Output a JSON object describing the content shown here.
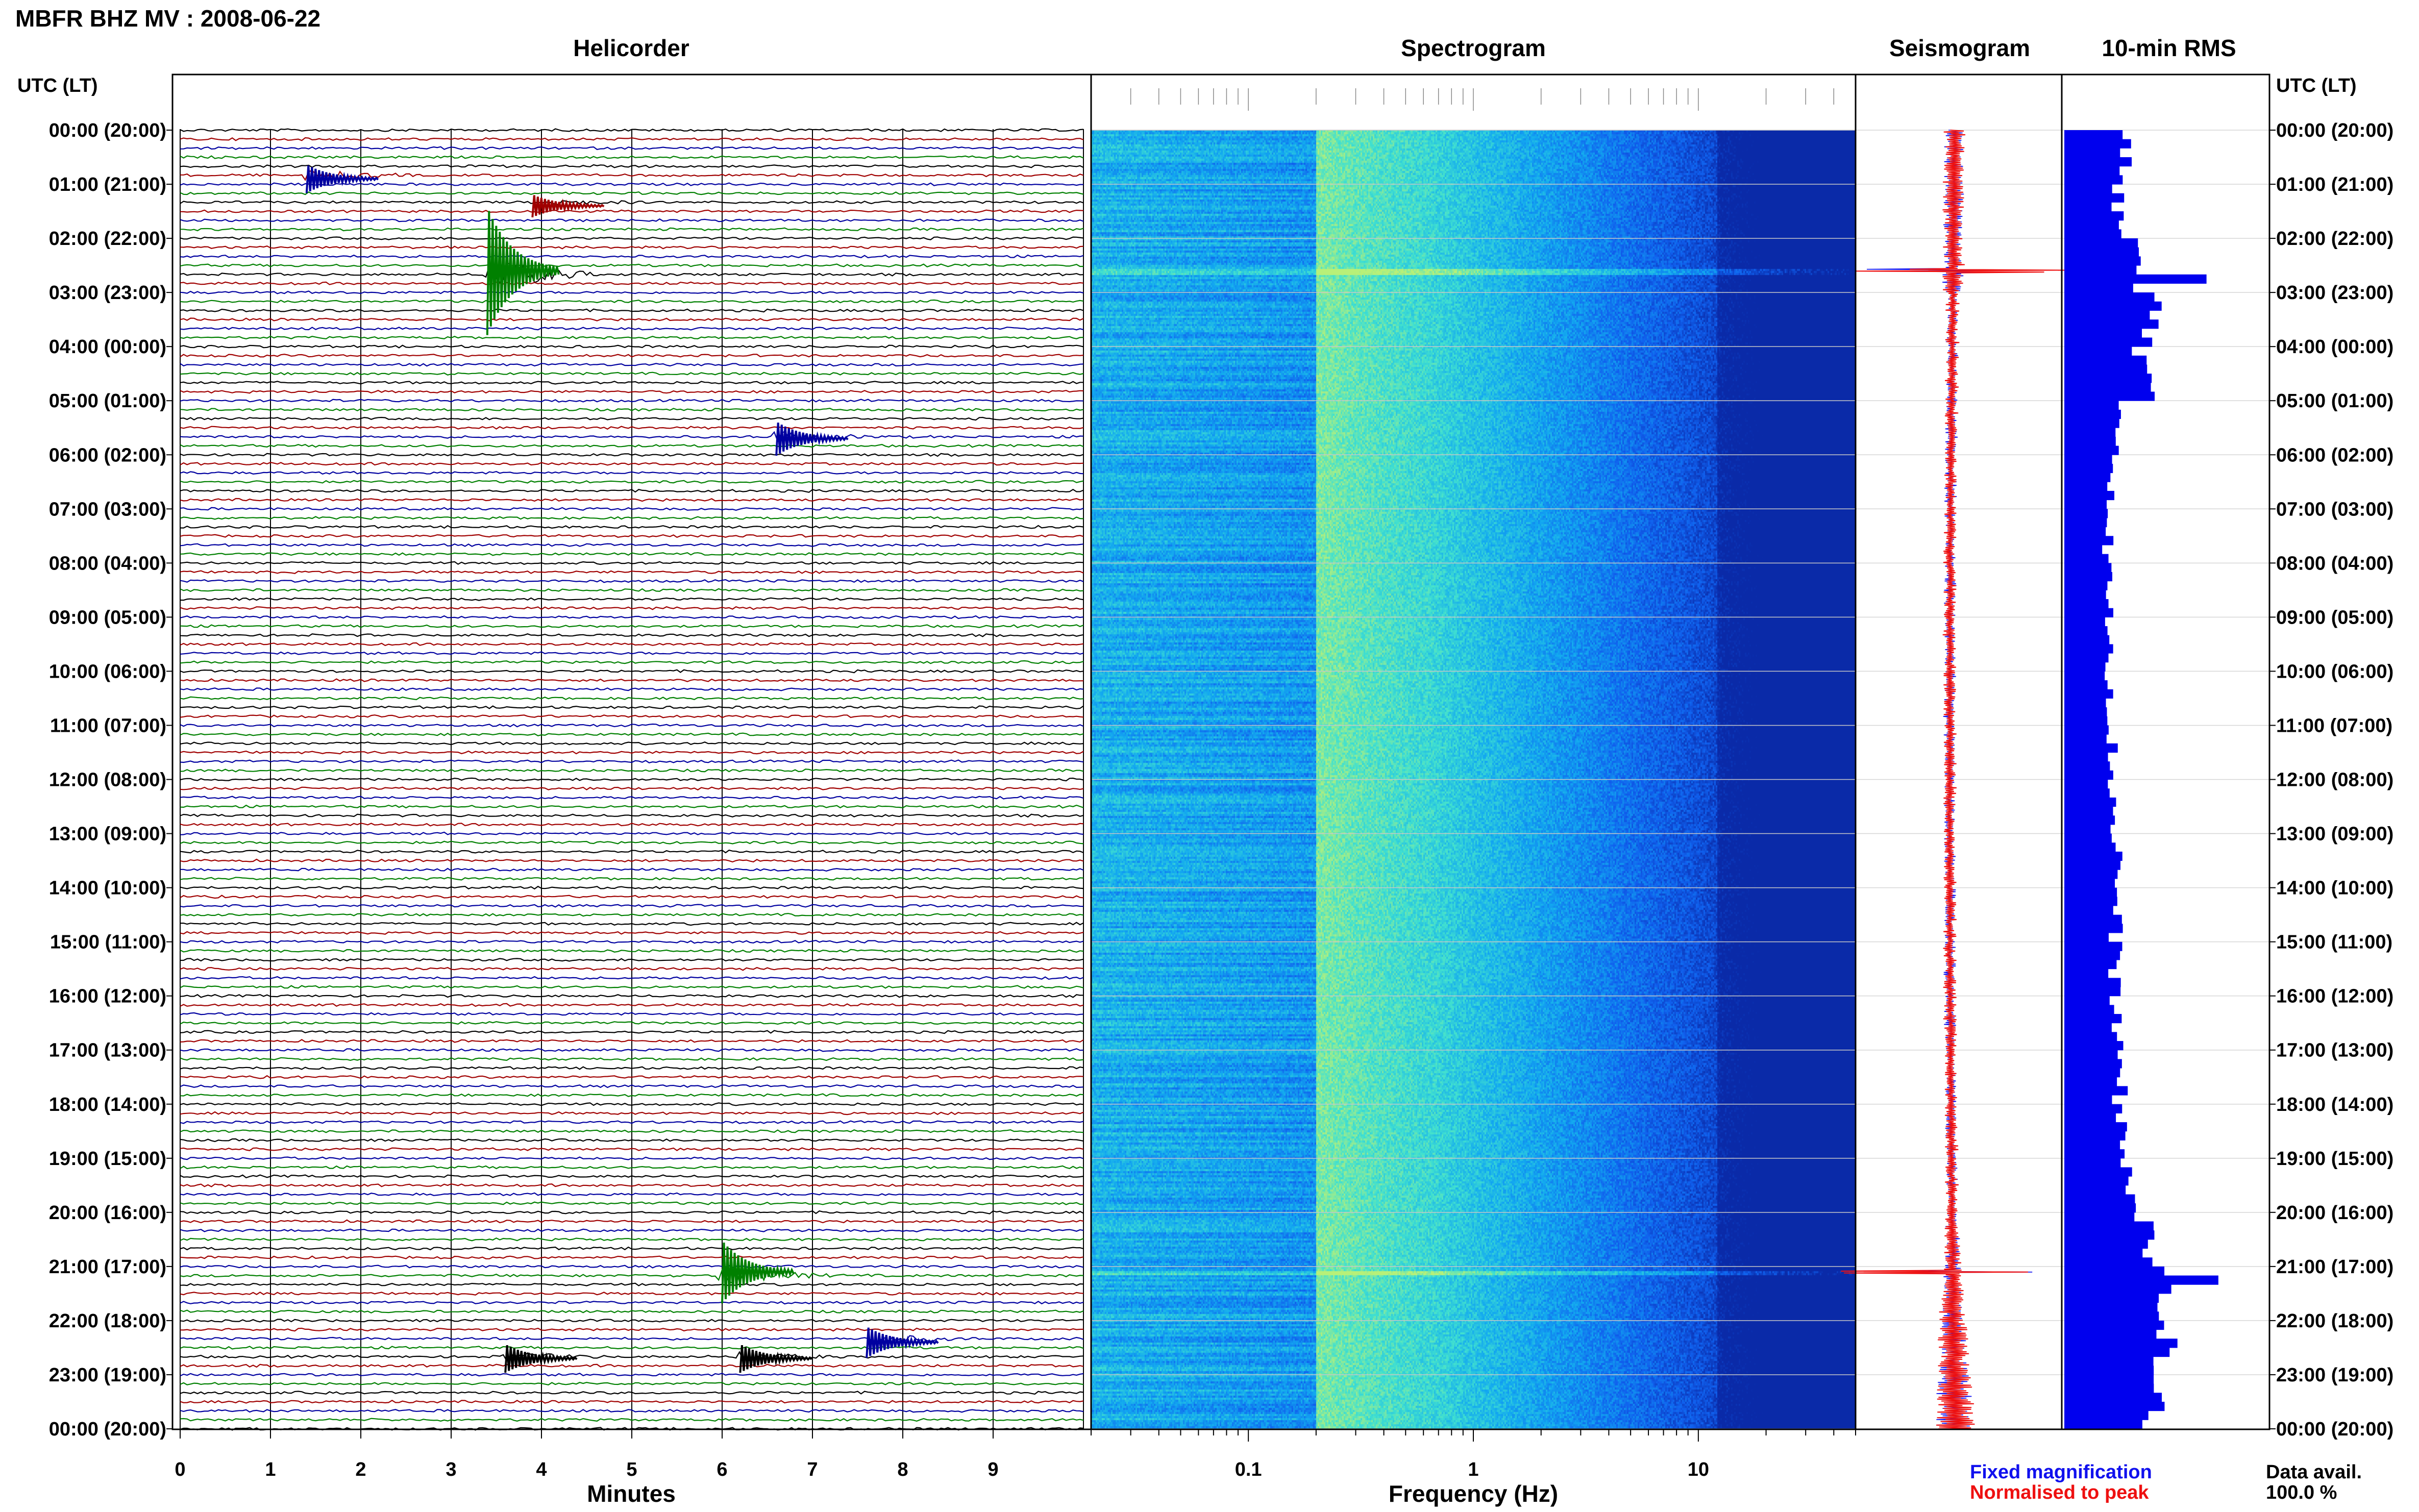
{
  "header": {
    "title": "MBFR BHZ MV : 2008-06-22",
    "utc_label_left": "UTC (LT)",
    "utc_label_right": "UTC (LT)"
  },
  "panels": {
    "helicorder": "Helicorder",
    "spectrogram": "Spectrogram",
    "seismogram": "Seismogram",
    "rms": "10-min RMS"
  },
  "axes": {
    "helicorder_xlabel": "Minutes",
    "spectrogram_xlabel": "Frequency (Hz)",
    "minute_ticks": [
      "0",
      "1",
      "2",
      "3",
      "4",
      "5",
      "6",
      "7",
      "8",
      "9"
    ],
    "freq_ticks": [
      "0.1",
      "1",
      "10"
    ]
  },
  "time_labels": [
    "00:00 (20:00)",
    "01:00 (21:00)",
    "02:00 (22:00)",
    "03:00 (23:00)",
    "04:00 (00:00)",
    "05:00 (01:00)",
    "06:00 (02:00)",
    "07:00 (03:00)",
    "08:00 (04:00)",
    "09:00 (05:00)",
    "10:00 (06:00)",
    "11:00 (07:00)",
    "12:00 (08:00)",
    "13:00 (09:00)",
    "14:00 (10:00)",
    "15:00 (11:00)",
    "16:00 (12:00)",
    "17:00 (13:00)",
    "18:00 (14:00)",
    "19:00 (15:00)",
    "20:00 (16:00)",
    "21:00 (17:00)",
    "22:00 (18:00)",
    "23:00 (19:00)",
    "00:00 (20:00)"
  ],
  "legend": {
    "fixed": "Fixed magnification",
    "normalised": "Normalised to peak",
    "fixed_color": "#1010ee",
    "normalised_color": "#ee1010"
  },
  "availability": {
    "label": "Data avail.",
    "value": "100.0 %"
  },
  "colors": {
    "trace_cycle": [
      "#000000",
      "#a00000",
      "#0000a0",
      "#008000"
    ],
    "rms_bar": "#0000ee",
    "seismo_fixed": "#1010ee",
    "seismo_norm": "#ee1010"
  },
  "chart_data": [
    {
      "type": "line",
      "panel": "Helicorder",
      "xlabel": "Minutes",
      "xlim": [
        0,
        10
      ],
      "rows_per_hour": 6,
      "row_minutes": 10,
      "rows": 144,
      "events": [
        {
          "hour": 2.6,
          "minute": 3.4,
          "amp": 4.5,
          "color": "#008000"
        },
        {
          "hour": 21.1,
          "minute": 6.0,
          "amp": 2.2,
          "color": "#008000"
        },
        {
          "hour": 0.9,
          "minute": 1.4,
          "amp": 1.0,
          "color": "#0000a0"
        },
        {
          "hour": 5.7,
          "minute": 6.6,
          "amp": 1.2,
          "color": "#0000a0"
        },
        {
          "hour": 22.4,
          "minute": 7.6,
          "amp": 1.1,
          "color": "#0000a0"
        },
        {
          "hour": 22.7,
          "minute": 3.6,
          "amp": 1.0,
          "color": "#000000"
        },
        {
          "hour": 22.7,
          "minute": 6.2,
          "amp": 1.0,
          "color": "#000000"
        },
        {
          "hour": 1.4,
          "minute": 3.9,
          "amp": 0.8,
          "color": "#a00000"
        }
      ]
    },
    {
      "type": "heatmap",
      "panel": "Spectrogram",
      "xlabel": "Frequency (Hz)",
      "xscale": "log",
      "xlim": [
        0.02,
        50
      ],
      "colormap": [
        "#0a2aa8",
        "#1060ee",
        "#12a8f0",
        "#40e0d0",
        "#b8f078"
      ],
      "peak_band_hz": [
        0.2,
        0.6
      ]
    },
    {
      "type": "line",
      "panel": "Seismogram",
      "series": [
        {
          "name": "Fixed magnification",
          "color": "#1010ee"
        },
        {
          "name": "Normalised to peak",
          "color": "#ee1010"
        }
      ],
      "spikes_hour": [
        2.6,
        21.1
      ]
    },
    {
      "type": "bar",
      "panel": "10-min RMS",
      "orientation": "horizontal",
      "bins_per_hour": 6,
      "hourly_levels": [
        0.3,
        0.28,
        0.35,
        0.45,
        0.4,
        0.28,
        0.25,
        0.22,
        0.22,
        0.24,
        0.24,
        0.24,
        0.25,
        0.27,
        0.26,
        0.26,
        0.26,
        0.28,
        0.29,
        0.33,
        0.4,
        0.55,
        0.5,
        0.45
      ],
      "peaks": [
        {
          "hour": 2.6,
          "value": 0.72
        },
        {
          "hour": 21.1,
          "value": 0.78
        }
      ]
    }
  ]
}
